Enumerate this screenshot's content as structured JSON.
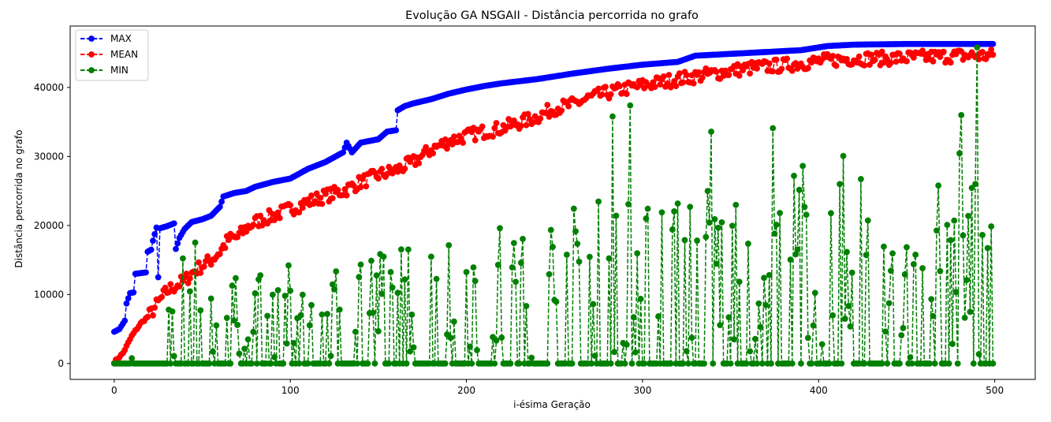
{
  "chart_data": {
    "type": "line",
    "title": "Evolução GA NSGAII - Distância percorrida no grafo",
    "xlabel": "i-ésima Geração",
    "ylabel": "Distância percorrida no grafo",
    "xlim": [
      -25,
      523
    ],
    "ylim": [
      -2300,
      48900
    ],
    "xticks": [
      0,
      100,
      200,
      300,
      400,
      500
    ],
    "yticks": [
      0,
      10000,
      20000,
      30000,
      40000
    ],
    "grid": false,
    "legend": "top-left",
    "line_style": "dashed",
    "marker": "circle",
    "n_generations": 500,
    "series": [
      {
        "name": "MAX",
        "color": "#0000ff",
        "anchors": [
          [
            0,
            4600
          ],
          [
            3,
            5000
          ],
          [
            6,
            6200
          ],
          [
            7,
            8700
          ],
          [
            9,
            10200
          ],
          [
            11,
            10300
          ],
          [
            12,
            13000
          ],
          [
            18,
            13200
          ],
          [
            19,
            16200
          ],
          [
            21,
            16500
          ],
          [
            22,
            17800
          ],
          [
            24,
            19700
          ],
          [
            25,
            12500
          ],
          [
            26,
            19600
          ],
          [
            30,
            19900
          ],
          [
            34,
            20300
          ],
          [
            35,
            16600
          ],
          [
            37,
            18200
          ],
          [
            40,
            19500
          ],
          [
            44,
            20500
          ],
          [
            50,
            20900
          ],
          [
            55,
            21400
          ],
          [
            60,
            22700
          ],
          [
            62,
            24200
          ],
          [
            68,
            24700
          ],
          [
            75,
            25000
          ],
          [
            80,
            25600
          ],
          [
            90,
            26300
          ],
          [
            100,
            26800
          ],
          [
            110,
            28200
          ],
          [
            120,
            29200
          ],
          [
            130,
            30600
          ],
          [
            132,
            32000
          ],
          [
            135,
            30600
          ],
          [
            140,
            32000
          ],
          [
            150,
            32500
          ],
          [
            155,
            33600
          ],
          [
            160,
            33800
          ],
          [
            161,
            36700
          ],
          [
            165,
            37300
          ],
          [
            170,
            37700
          ],
          [
            180,
            38300
          ],
          [
            190,
            39100
          ],
          [
            200,
            39700
          ],
          [
            210,
            40200
          ],
          [
            220,
            40600
          ],
          [
            240,
            41200
          ],
          [
            260,
            42000
          ],
          [
            280,
            42700
          ],
          [
            300,
            43300
          ],
          [
            320,
            43700
          ],
          [
            330,
            44600
          ],
          [
            360,
            45000
          ],
          [
            390,
            45400
          ],
          [
            405,
            46000
          ],
          [
            420,
            46200
          ],
          [
            450,
            46300
          ],
          [
            499,
            46300
          ]
        ]
      },
      {
        "name": "MEAN",
        "color": "#ff0000",
        "anchors": [
          [
            0,
            200
          ],
          [
            5,
            1500
          ],
          [
            10,
            4000
          ],
          [
            15,
            5800
          ],
          [
            20,
            7000
          ],
          [
            25,
            8800
          ],
          [
            30,
            10500
          ],
          [
            35,
            11300
          ],
          [
            40,
            12000
          ],
          [
            45,
            13300
          ],
          [
            50,
            14200
          ],
          [
            55,
            15000
          ],
          [
            60,
            16200
          ],
          [
            65,
            18000
          ],
          [
            70,
            18300
          ],
          [
            75,
            19600
          ],
          [
            80,
            20500
          ],
          [
            90,
            21400
          ],
          [
            100,
            22400
          ],
          [
            110,
            23400
          ],
          [
            120,
            24300
          ],
          [
            130,
            25000
          ],
          [
            140,
            26300
          ],
          [
            150,
            27300
          ],
          [
            160,
            28000
          ],
          [
            170,
            29200
          ],
          [
            180,
            31000
          ],
          [
            190,
            32200
          ],
          [
            200,
            33000
          ],
          [
            210,
            33600
          ],
          [
            220,
            34100
          ],
          [
            240,
            35700
          ],
          [
            250,
            37000
          ],
          [
            260,
            37500
          ],
          [
            270,
            38500
          ],
          [
            280,
            39200
          ],
          [
            290,
            39800
          ],
          [
            300,
            40300
          ],
          [
            320,
            41200
          ],
          [
            340,
            42000
          ],
          [
            360,
            42800
          ],
          [
            380,
            43200
          ],
          [
            400,
            43800
          ],
          [
            420,
            44200
          ],
          [
            440,
            44200
          ],
          [
            460,
            44400
          ],
          [
            480,
            44600
          ],
          [
            499,
            44600
          ]
        ],
        "noise": 1000
      },
      {
        "name": "MIN",
        "color": "#008000",
        "zero_until": 49,
        "zero_probability": 0.55,
        "highlights": [
          [
            283,
            35800
          ],
          [
            293,
            37400
          ],
          [
            339,
            33600
          ],
          [
            374,
            34100
          ],
          [
            481,
            36000
          ],
          [
            490,
            45800
          ]
        ]
      }
    ]
  }
}
